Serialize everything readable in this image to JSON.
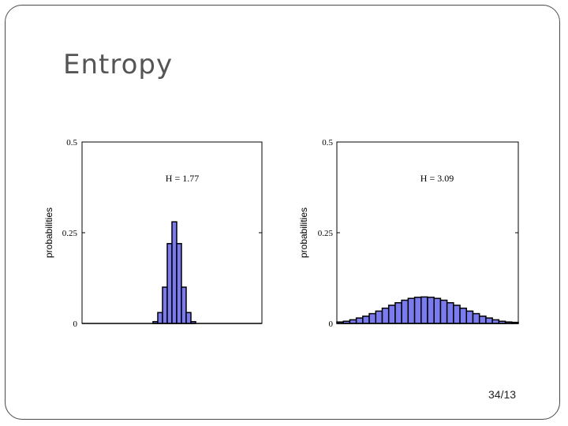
{
  "slide": {
    "title": "Entropy",
    "page_number": "34/13"
  },
  "colors": {
    "bar_fill": "#7b7bf0",
    "bar_stroke": "#000000",
    "frame": "#4a4a4a"
  },
  "chart_data": [
    {
      "type": "bar",
      "ylabel": "probabilities",
      "ylim": [
        0,
        0.5
      ],
      "yticks": [
        0,
        0.25,
        0.5
      ],
      "ytick_labels": [
        "0",
        "0.25",
        "0.5"
      ],
      "annotation": "H = 1.77",
      "grid": false,
      "values": [
        0,
        0,
        0,
        0,
        0,
        0,
        0,
        0,
        0,
        0,
        0,
        0,
        0,
        0,
        0,
        0.005,
        0.03,
        0.1,
        0.22,
        0.28,
        0.22,
        0.1,
        0.03,
        0.005,
        0,
        0,
        0,
        0,
        0,
        0,
        0,
        0,
        0,
        0,
        0,
        0,
        0,
        0
      ]
    },
    {
      "type": "bar",
      "ylabel": "probabilities",
      "ylim": [
        0,
        0.5
      ],
      "yticks": [
        0,
        0.25,
        0.5
      ],
      "ytick_labels": [
        "0",
        "0.25",
        "0.5"
      ],
      "annotation": "H = 3.09",
      "grid": false,
      "values": [
        0.004,
        0.006,
        0.01,
        0.015,
        0.02,
        0.027,
        0.034,
        0.042,
        0.05,
        0.057,
        0.064,
        0.069,
        0.072,
        0.073,
        0.072,
        0.069,
        0.064,
        0.057,
        0.05,
        0.042,
        0.034,
        0.027,
        0.02,
        0.015,
        0.01,
        0.006,
        0.004,
        0.003
      ]
    }
  ]
}
